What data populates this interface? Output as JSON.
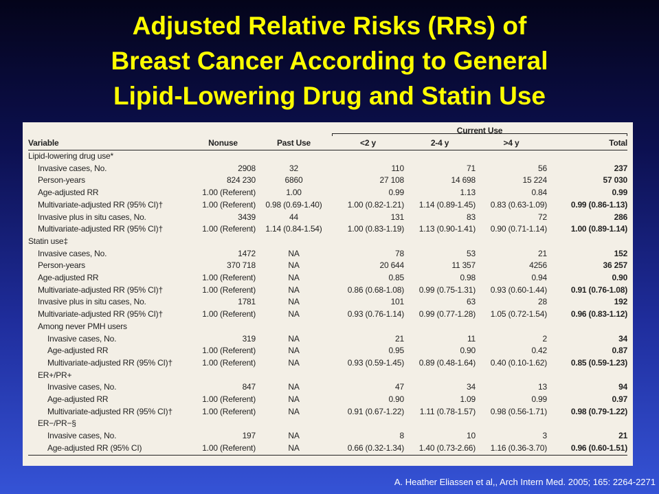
{
  "title": {
    "line1": "Adjusted Relative Risks (RRs) of",
    "line2": "Breast Cancer According to General",
    "line3": "Lipid-Lowering Drug and Statin Use"
  },
  "table": {
    "group_header": "Current Use",
    "columns": [
      "Variable",
      "Nonuse",
      "Past Use",
      "<2 y",
      "2-4 y",
      ">4 y",
      "Total"
    ],
    "rows": [
      {
        "kind": "section",
        "indent": 0,
        "label": "Lipid-lowering drug use*",
        "cells": [
          "",
          "",
          "",
          "",
          "",
          ""
        ]
      },
      {
        "kind": "data",
        "indent": 1,
        "label": "Invasive cases, No.",
        "cells": [
          "2908",
          "32",
          "110",
          "71",
          "56",
          "237"
        ]
      },
      {
        "kind": "data",
        "indent": 1,
        "label": "Person-years",
        "cells": [
          "824 230",
          "6860",
          "27 108",
          "14 698",
          "15 224",
          "57 030"
        ]
      },
      {
        "kind": "data",
        "indent": 1,
        "label": "Age-adjusted RR",
        "cells": [
          "1.00 (Referent)",
          "1.00",
          "0.99",
          "1.13",
          "0.84",
          "0.99"
        ]
      },
      {
        "kind": "data",
        "indent": 1,
        "label": "Multivariate-adjusted RR (95% CI)†",
        "cells": [
          "1.00 (Referent)",
          "0.98 (0.69-1.40)",
          "1.00 (0.82-1.21)",
          "1.14 (0.89-1.45)",
          "0.83 (0.63-1.09)",
          "0.99 (0.86-1.13)"
        ]
      },
      {
        "kind": "data",
        "indent": 1,
        "label": "Invasive plus in situ cases, No.",
        "cells": [
          "3439",
          "44",
          "131",
          "83",
          "72",
          "286"
        ]
      },
      {
        "kind": "data",
        "indent": 1,
        "label": "Multivariate-adjusted RR (95% CI)†",
        "cells": [
          "1.00 (Referent)",
          "1.14 (0.84-1.54)",
          "1.00 (0.83-1.19)",
          "1.13 (0.90-1.41)",
          "0.90 (0.71-1.14)",
          "1.00 (0.89-1.14)"
        ]
      },
      {
        "kind": "section",
        "indent": 0,
        "label": "Statin use‡",
        "cells": [
          "",
          "",
          "",
          "",
          "",
          ""
        ]
      },
      {
        "kind": "data",
        "indent": 1,
        "label": "Invasive cases, No.",
        "cells": [
          "1472",
          "NA",
          "78",
          "53",
          "21",
          "152"
        ]
      },
      {
        "kind": "data",
        "indent": 1,
        "label": "Person-years",
        "cells": [
          "370 718",
          "NA",
          "20 644",
          "11 357",
          "4256",
          "36 257"
        ]
      },
      {
        "kind": "data",
        "indent": 1,
        "label": "Age-adjusted RR",
        "cells": [
          "1.00 (Referent)",
          "NA",
          "0.85",
          "0.98",
          "0.94",
          "0.90"
        ]
      },
      {
        "kind": "data",
        "indent": 1,
        "label": "Multivariate-adjusted RR (95% CI)†",
        "cells": [
          "1.00 (Referent)",
          "NA",
          "0.86 (0.68-1.08)",
          "0.99 (0.75-1.31)",
          "0.93 (0.60-1.44)",
          "0.91 (0.76-1.08)"
        ]
      },
      {
        "kind": "data",
        "indent": 1,
        "label": "Invasive plus in situ cases, No.",
        "cells": [
          "1781",
          "NA",
          "101",
          "63",
          "28",
          "192"
        ]
      },
      {
        "kind": "data",
        "indent": 1,
        "label": "Multivariate-adjusted RR (95% CI)†",
        "cells": [
          "1.00 (Referent)",
          "NA",
          "0.93 (0.76-1.14)",
          "0.99 (0.77-1.28)",
          "1.05 (0.72-1.54)",
          "0.96 (0.83-1.12)"
        ]
      },
      {
        "kind": "section",
        "indent": 1,
        "label": "Among never PMH users",
        "cells": [
          "",
          "",
          "",
          "",
          "",
          ""
        ]
      },
      {
        "kind": "data",
        "indent": 2,
        "label": "Invasive cases, No.",
        "cells": [
          "319",
          "NA",
          "21",
          "11",
          "2",
          "34"
        ]
      },
      {
        "kind": "data",
        "indent": 2,
        "label": "Age-adjusted RR",
        "cells": [
          "1.00 (Referent)",
          "NA",
          "0.95",
          "0.90",
          "0.42",
          "0.87"
        ]
      },
      {
        "kind": "data",
        "indent": 2,
        "label": "Multivariate-adjusted RR (95% CI)†",
        "cells": [
          "1.00 (Referent)",
          "NA",
          "0.93 (0.59-1.45)",
          "0.89 (0.48-1.64)",
          "0.40 (0.10-1.62)",
          "0.85 (0.59-1.23)"
        ]
      },
      {
        "kind": "section",
        "indent": 1,
        "label": "ER+/PR+",
        "cells": [
          "",
          "",
          "",
          "",
          "",
          ""
        ]
      },
      {
        "kind": "data",
        "indent": 2,
        "label": "Invasive cases, No.",
        "cells": [
          "847",
          "NA",
          "47",
          "34",
          "13",
          "94"
        ]
      },
      {
        "kind": "data",
        "indent": 2,
        "label": "Age-adjusted RR",
        "cells": [
          "1.00 (Referent)",
          "NA",
          "0.90",
          "1.09",
          "0.99",
          "0.97"
        ]
      },
      {
        "kind": "data",
        "indent": 2,
        "label": "Multivariate-adjusted RR (95% CI)†",
        "cells": [
          "1.00 (Referent)",
          "NA",
          "0.91 (0.67-1.22)",
          "1.11 (0.78-1.57)",
          "0.98 (0.56-1.71)",
          "0.98 (0.79-1.22)"
        ]
      },
      {
        "kind": "section",
        "indent": 1,
        "label": "ER−/PR−§",
        "cells": [
          "",
          "",
          "",
          "",
          "",
          ""
        ]
      },
      {
        "kind": "data",
        "indent": 2,
        "label": "Invasive cases, No.",
        "cells": [
          "197",
          "NA",
          "8",
          "10",
          "3",
          "21"
        ]
      },
      {
        "kind": "data",
        "indent": 2,
        "label": "Age-adjusted RR (95% CI)",
        "cells": [
          "1.00 (Referent)",
          "NA",
          "0.66 (0.32-1.34)",
          "1.40 (0.73-2.66)",
          "1.16 (0.36-3.70)",
          "0.96 (0.60-1.51)"
        ]
      }
    ]
  },
  "citation": "A. Heather Eliassen et al,, Arch Intern Med. 2005; 165: 2264-2271",
  "colors": {
    "title": "#ffff00",
    "panel": "#f3efe6",
    "background_top": "#04041a",
    "background_bottom": "#3553d6"
  }
}
